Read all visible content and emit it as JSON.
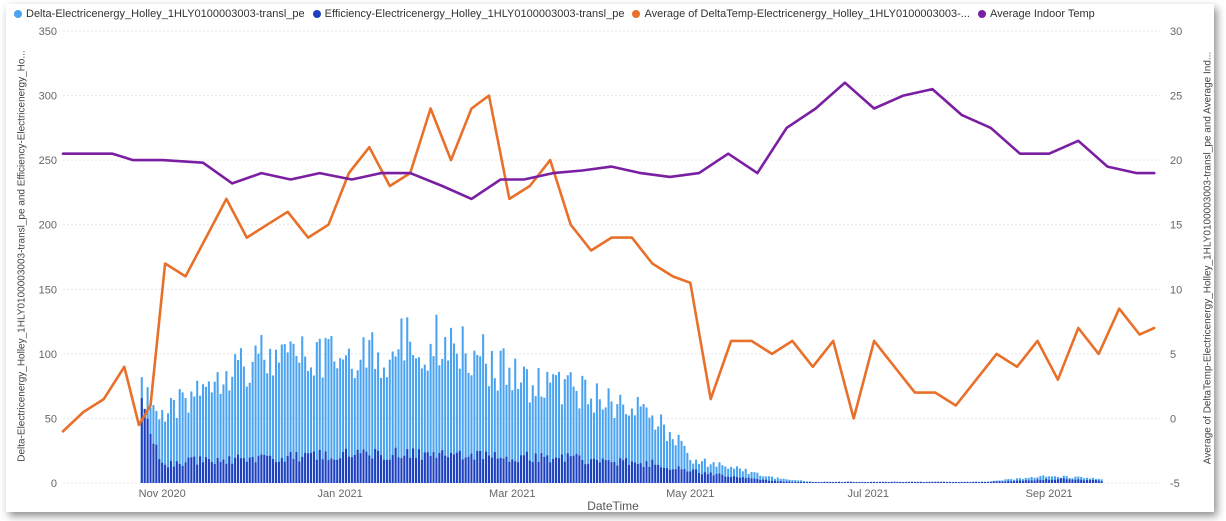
{
  "legend": [
    {
      "label": "Delta-Electricenergy_Holley_1HLY0100003003-transl_pe",
      "color": "#4aa3f0"
    },
    {
      "label": "Efficiency-Electricenergy_Holley_1HLY0100003003-transl_pe",
      "color": "#1f3fbf"
    },
    {
      "label": "Average of DeltaTemp-Electricenergy_Holley_1HLY0100003003-...",
      "color": "#e8702a"
    },
    {
      "label": "Average Indoor Temp",
      "color": "#7b1fa2"
    }
  ],
  "axes": {
    "x_title": "DateTime",
    "y_left_title": "Delta-Electricenergy_Holley_1HLY0100003003-transl_pe and Efficiency-Electricenergy_Ho...",
    "y_right_title": "Average of DeltaTemp-Electricenergy_Holley_1HLY0100003003-transl_pe and Average Ind...",
    "x_ticks": [
      "Nov 2020",
      "Jan 2021",
      "Mar 2021",
      "May 2021",
      "Jul 2021",
      "Sep 2021"
    ],
    "y_left_ticks": [
      "0",
      "50",
      "100",
      "150",
      "200",
      "250",
      "300",
      "350"
    ],
    "y_right_ticks": [
      "-5",
      "0",
      "5",
      "10",
      "15",
      "20",
      "25",
      "30"
    ]
  },
  "chart_data": {
    "type": "bar",
    "x_start": "2020-09-28",
    "x_end": "2021-10-09",
    "ylim_left": [
      0,
      350
    ],
    "ylim_right": [
      -5,
      30
    ],
    "x_tick_dates": [
      "2020-11-01",
      "2021-01-01",
      "2021-03-01",
      "2021-05-01",
      "2021-07-01",
      "2021-09-01"
    ],
    "grid": "horizontal",
    "legend_position": "top-left",
    "series": [
      {
        "name": "Delta-Electricenergy_Holley_1HLY0100003003-transl_pe",
        "type": "bar",
        "axis": "left",
        "color": "#4aa3f0",
        "points": [
          [
            "2020-10-25",
            82
          ],
          [
            "2020-11-01",
            60
          ],
          [
            "2020-11-08",
            75
          ],
          [
            "2020-11-15",
            95
          ],
          [
            "2020-11-22",
            108
          ],
          [
            "2020-11-29",
            113
          ],
          [
            "2020-12-06",
            118
          ],
          [
            "2020-12-13",
            112
          ],
          [
            "2020-12-20",
            120
          ],
          [
            "2020-12-27",
            113
          ],
          [
            "2021-01-03",
            127
          ],
          [
            "2021-01-10",
            118
          ],
          [
            "2021-01-17",
            120
          ],
          [
            "2021-01-24",
            135
          ],
          [
            "2021-01-31",
            130
          ],
          [
            "2021-02-07",
            138
          ],
          [
            "2021-02-14",
            128
          ],
          [
            "2021-02-21",
            115
          ],
          [
            "2021-02-28",
            100
          ],
          [
            "2021-03-07",
            95
          ],
          [
            "2021-03-14",
            92
          ],
          [
            "2021-03-21",
            88
          ],
          [
            "2021-03-28",
            80
          ],
          [
            "2021-04-04",
            75
          ],
          [
            "2021-04-11",
            70
          ],
          [
            "2021-04-18",
            60
          ],
          [
            "2021-04-25",
            45
          ],
          [
            "2021-05-01",
            22
          ],
          [
            "2021-05-15",
            15
          ],
          [
            "2021-05-22",
            10
          ],
          [
            "2021-05-29",
            5
          ],
          [
            "2021-06-05",
            3
          ],
          [
            "2021-06-12",
            1
          ],
          [
            "2021-06-30",
            1
          ],
          [
            "2021-07-20",
            1
          ],
          [
            "2021-08-10",
            1
          ],
          [
            "2021-08-29",
            6
          ],
          [
            "2021-09-05",
            6
          ],
          [
            "2021-09-12",
            5
          ],
          [
            "2021-09-19",
            4
          ]
        ]
      },
      {
        "name": "Efficiency-Electricenergy_Holley_1HLY0100003003-transl_pe",
        "type": "bar",
        "axis": "left",
        "color": "#1f3fbf",
        "points": [
          [
            "2020-10-25",
            80
          ],
          [
            "2020-11-01",
            18
          ],
          [
            "2020-11-08",
            20
          ],
          [
            "2020-11-15",
            21
          ],
          [
            "2020-11-22",
            23
          ],
          [
            "2020-11-29",
            22
          ],
          [
            "2020-12-06",
            23
          ],
          [
            "2020-12-13",
            24
          ],
          [
            "2020-12-20",
            25
          ],
          [
            "2020-12-27",
            26
          ],
          [
            "2021-01-03",
            27
          ],
          [
            "2021-01-10",
            26
          ],
          [
            "2021-01-17",
            27
          ],
          [
            "2021-01-24",
            28
          ],
          [
            "2021-01-31",
            27
          ],
          [
            "2021-02-07",
            27
          ],
          [
            "2021-02-14",
            26
          ],
          [
            "2021-02-21",
            26
          ],
          [
            "2021-02-28",
            25
          ],
          [
            "2021-03-07",
            24
          ],
          [
            "2021-03-14",
            24
          ],
          [
            "2021-03-21",
            23
          ],
          [
            "2021-03-28",
            22
          ],
          [
            "2021-04-04",
            21
          ],
          [
            "2021-04-11",
            19
          ],
          [
            "2021-04-18",
            18
          ],
          [
            "2021-04-25",
            15
          ],
          [
            "2021-05-01",
            12
          ],
          [
            "2021-05-15",
            6
          ],
          [
            "2021-05-22",
            4
          ],
          [
            "2021-05-29",
            2
          ],
          [
            "2021-06-05",
            1
          ],
          [
            "2021-06-12",
            1
          ],
          [
            "2021-06-30",
            1
          ],
          [
            "2021-07-20",
            1
          ],
          [
            "2021-08-10",
            1
          ],
          [
            "2021-08-29",
            3
          ],
          [
            "2021-09-05",
            4
          ],
          [
            "2021-09-12",
            3
          ],
          [
            "2021-09-19",
            2
          ]
        ]
      },
      {
        "name": "Average of DeltaTemp-Electricenergy_Holley_1HLY0100003003-...",
        "type": "line",
        "axis": "right",
        "color": "#e8702a",
        "points": [
          [
            "2020-09-28",
            -1
          ],
          [
            "2020-10-05",
            0.5
          ],
          [
            "2020-10-12",
            1.5
          ],
          [
            "2020-10-19",
            4
          ],
          [
            "2020-10-24",
            -0.5
          ],
          [
            "2020-10-28",
            1
          ],
          [
            "2020-11-02",
            12
          ],
          [
            "2020-11-09",
            11
          ],
          [
            "2020-11-16",
            14
          ],
          [
            "2020-11-23",
            17
          ],
          [
            "2020-11-30",
            14
          ],
          [
            "2020-12-07",
            15
          ],
          [
            "2020-12-14",
            16
          ],
          [
            "2020-12-21",
            14
          ],
          [
            "2020-12-28",
            15
          ],
          [
            "2021-01-04",
            19
          ],
          [
            "2021-01-11",
            21
          ],
          [
            "2021-01-18",
            18
          ],
          [
            "2021-01-25",
            19
          ],
          [
            "2021-02-01",
            24
          ],
          [
            "2021-02-08",
            20
          ],
          [
            "2021-02-15",
            24
          ],
          [
            "2021-02-21",
            25
          ],
          [
            "2021-02-28",
            17
          ],
          [
            "2021-03-07",
            18
          ],
          [
            "2021-03-14",
            20
          ],
          [
            "2021-03-21",
            15
          ],
          [
            "2021-03-28",
            13
          ],
          [
            "2021-04-04",
            14
          ],
          [
            "2021-04-11",
            14
          ],
          [
            "2021-04-18",
            12
          ],
          [
            "2021-04-25",
            11
          ],
          [
            "2021-05-01",
            10.5
          ],
          [
            "2021-05-08",
            1.5
          ],
          [
            "2021-05-15",
            6
          ],
          [
            "2021-05-22",
            6
          ],
          [
            "2021-05-29",
            5
          ],
          [
            "2021-06-05",
            6
          ],
          [
            "2021-06-12",
            4
          ],
          [
            "2021-06-19",
            6
          ],
          [
            "2021-06-26",
            0
          ],
          [
            "2021-07-03",
            6
          ],
          [
            "2021-07-10",
            4
          ],
          [
            "2021-07-17",
            2
          ],
          [
            "2021-07-24",
            2
          ],
          [
            "2021-07-31",
            1
          ],
          [
            "2021-08-07",
            3
          ],
          [
            "2021-08-14",
            5
          ],
          [
            "2021-08-21",
            4
          ],
          [
            "2021-08-28",
            6
          ],
          [
            "2021-09-04",
            3
          ],
          [
            "2021-09-11",
            7
          ],
          [
            "2021-09-18",
            5
          ],
          [
            "2021-09-25",
            8.5
          ],
          [
            "2021-10-02",
            6.5
          ],
          [
            "2021-10-07",
            7
          ]
        ]
      },
      {
        "name": "Average Indoor Temp",
        "type": "line",
        "axis": "right",
        "color": "#7b1fa2",
        "points": [
          [
            "2020-09-28",
            20.5
          ],
          [
            "2020-10-15",
            20.5
          ],
          [
            "2020-10-22",
            20
          ],
          [
            "2020-11-01",
            20
          ],
          [
            "2020-11-15",
            19.8
          ],
          [
            "2020-11-25",
            18.2
          ],
          [
            "2020-12-05",
            19
          ],
          [
            "2020-12-15",
            18.5
          ],
          [
            "2020-12-25",
            19
          ],
          [
            "2021-01-05",
            18.5
          ],
          [
            "2021-01-15",
            19
          ],
          [
            "2021-01-25",
            19
          ],
          [
            "2021-02-05",
            18
          ],
          [
            "2021-02-15",
            17
          ],
          [
            "2021-02-25",
            18.5
          ],
          [
            "2021-03-05",
            18.5
          ],
          [
            "2021-03-15",
            19
          ],
          [
            "2021-03-25",
            19.2
          ],
          [
            "2021-04-04",
            19.5
          ],
          [
            "2021-04-14",
            19
          ],
          [
            "2021-04-24",
            18.7
          ],
          [
            "2021-05-04",
            19
          ],
          [
            "2021-05-14",
            20.5
          ],
          [
            "2021-05-24",
            19
          ],
          [
            "2021-06-03",
            22.5
          ],
          [
            "2021-06-13",
            24
          ],
          [
            "2021-06-23",
            26
          ],
          [
            "2021-07-03",
            24
          ],
          [
            "2021-07-13",
            25
          ],
          [
            "2021-07-23",
            25.5
          ],
          [
            "2021-08-02",
            23.5
          ],
          [
            "2021-08-12",
            22.5
          ],
          [
            "2021-08-22",
            20.5
          ],
          [
            "2021-09-01",
            20.5
          ],
          [
            "2021-09-11",
            21.5
          ],
          [
            "2021-09-21",
            19.5
          ],
          [
            "2021-10-01",
            19
          ],
          [
            "2021-10-07",
            19
          ]
        ]
      }
    ]
  }
}
